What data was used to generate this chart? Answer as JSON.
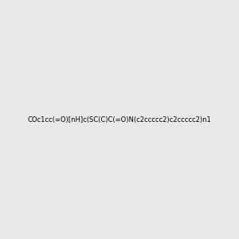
{
  "smiles": "COc1cc(=O)[nH]c(SC(C)C(=O)N(c2ccccc2)c2ccccc2)n1",
  "background_color": "#e8e8e8",
  "image_size": 300,
  "atom_colors": {
    "N": "#0000ff",
    "O": "#ff0000",
    "S": "#cccc00"
  },
  "title": "",
  "bond_color": "#000000"
}
